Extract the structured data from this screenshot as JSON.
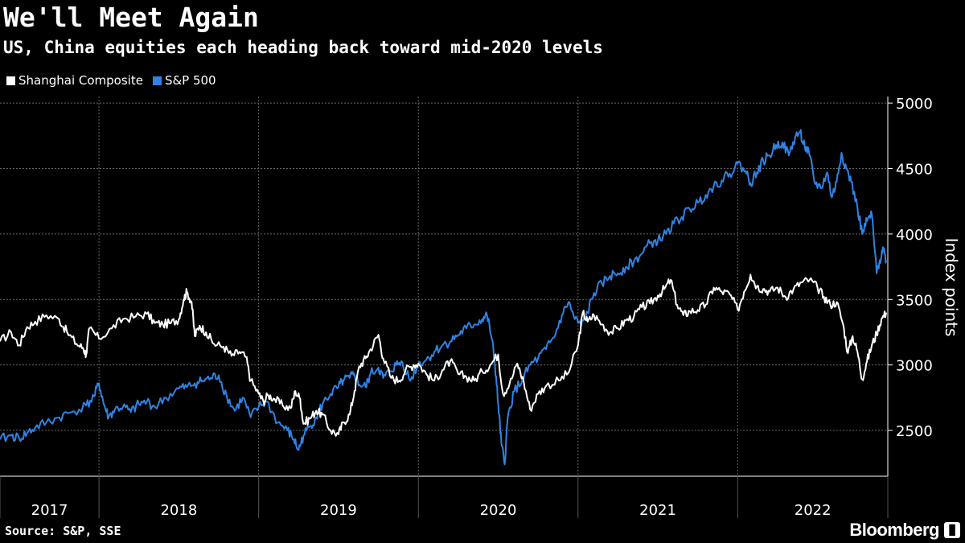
{
  "title": "We'll Meet Again",
  "subtitle": "US, China equities each heading back toward mid-2020 levels",
  "source": "Source: S&P, SSE",
  "brand": "Bloomberg",
  "brand_icon": "bloomberg-terminal-icon",
  "colors": {
    "background": "#000000",
    "shanghai": "#ffffff",
    "sp500": "#2f83e4",
    "grid": "#666666"
  },
  "chart_data": {
    "type": "line",
    "title": "We'll Meet Again",
    "subtitle": "US, China equities each heading back toward mid-2020 levels",
    "xlabel": "",
    "ylabel": "Index points",
    "x_range": [
      2016.88,
      2022.44
    ],
    "ylim": [
      2150,
      5050
    ],
    "y_ticks": [
      2500,
      3000,
      3500,
      4000,
      4500,
      5000
    ],
    "x_ticks": [
      {
        "label": "2017",
        "year": 2017
      },
      {
        "label": "2018",
        "year": 2018
      },
      {
        "label": "2019",
        "year": 2019
      },
      {
        "label": "2020",
        "year": 2020
      },
      {
        "label": "2021",
        "year": 2021
      },
      {
        "label": "2022",
        "year": 2022
      }
    ],
    "x_boundaries": [
      2016.88,
      2017.5,
      2018.5,
      2019.5,
      2020.5,
      2021.5,
      2022.44
    ],
    "grid": true,
    "legend_position": "top-left",
    "series": [
      {
        "name": "Shanghai Composite",
        "color": "#ffffff",
        "points": [
          [
            2016.88,
            3180
          ],
          [
            2016.95,
            3250
          ],
          [
            2017.0,
            3150
          ],
          [
            2017.05,
            3290
          ],
          [
            2017.1,
            3330
          ],
          [
            2017.17,
            3380
          ],
          [
            2017.25,
            3350
          ],
          [
            2017.3,
            3250
          ],
          [
            2017.36,
            3160
          ],
          [
            2017.4,
            3130
          ],
          [
            2017.42,
            3080
          ],
          [
            2017.44,
            3280
          ],
          [
            2017.5,
            3200
          ],
          [
            2017.58,
            3280
          ],
          [
            2017.65,
            3350
          ],
          [
            2017.73,
            3370
          ],
          [
            2017.8,
            3390
          ],
          [
            2017.85,
            3320
          ],
          [
            2017.9,
            3310
          ],
          [
            2017.95,
            3320
          ],
          [
            2018.0,
            3350
          ],
          [
            2018.03,
            3500
          ],
          [
            2018.05,
            3560
          ],
          [
            2018.08,
            3480
          ],
          [
            2018.1,
            3220
          ],
          [
            2018.13,
            3300
          ],
          [
            2018.17,
            3250
          ],
          [
            2018.22,
            3160
          ],
          [
            2018.28,
            3140
          ],
          [
            2018.33,
            3070
          ],
          [
            2018.38,
            3100
          ],
          [
            2018.42,
            3060
          ],
          [
            2018.45,
            2880
          ],
          [
            2018.5,
            2780
          ],
          [
            2018.53,
            2720
          ],
          [
            2018.56,
            2770
          ],
          [
            2018.6,
            2740
          ],
          [
            2018.65,
            2690
          ],
          [
            2018.7,
            2670
          ],
          [
            2018.73,
            2800
          ],
          [
            2018.76,
            2740
          ],
          [
            2018.78,
            2550
          ],
          [
            2018.82,
            2590
          ],
          [
            2018.86,
            2650
          ],
          [
            2018.9,
            2620
          ],
          [
            2018.95,
            2500
          ],
          [
            2019.0,
            2470
          ],
          [
            2019.03,
            2560
          ],
          [
            2019.07,
            2620
          ],
          [
            2019.1,
            2800
          ],
          [
            2019.13,
            2990
          ],
          [
            2019.17,
            3050
          ],
          [
            2019.2,
            3120
          ],
          [
            2019.25,
            3230
          ],
          [
            2019.28,
            3050
          ],
          [
            2019.33,
            2900
          ],
          [
            2019.38,
            2880
          ],
          [
            2019.42,
            2960
          ],
          [
            2019.47,
            3000
          ],
          [
            2019.5,
            3010
          ],
          [
            2019.55,
            2930
          ],
          [
            2019.6,
            2880
          ],
          [
            2019.65,
            2960
          ],
          [
            2019.7,
            3030
          ],
          [
            2019.75,
            2930
          ],
          [
            2019.8,
            2910
          ],
          [
            2019.85,
            2880
          ],
          [
            2019.9,
            2950
          ],
          [
            2019.95,
            3000
          ],
          [
            2020.0,
            3080
          ],
          [
            2020.03,
            2780
          ],
          [
            2020.07,
            2850
          ],
          [
            2020.12,
            3010
          ],
          [
            2020.16,
            2870
          ],
          [
            2020.2,
            2660
          ],
          [
            2020.25,
            2780
          ],
          [
            2020.3,
            2840
          ],
          [
            2020.38,
            2880
          ],
          [
            2020.44,
            2940
          ],
          [
            2020.5,
            3150
          ],
          [
            2020.53,
            3400
          ],
          [
            2020.56,
            3330
          ],
          [
            2020.6,
            3380
          ],
          [
            2020.65,
            3310
          ],
          [
            2020.7,
            3250
          ],
          [
            2020.75,
            3280
          ],
          [
            2020.8,
            3340
          ],
          [
            2020.85,
            3370
          ],
          [
            2020.9,
            3440
          ],
          [
            2020.95,
            3470
          ],
          [
            2021.0,
            3530
          ],
          [
            2021.04,
            3580
          ],
          [
            2021.08,
            3650
          ],
          [
            2021.12,
            3460
          ],
          [
            2021.16,
            3380
          ],
          [
            2021.2,
            3410
          ],
          [
            2021.25,
            3420
          ],
          [
            2021.3,
            3460
          ],
          [
            2021.35,
            3590
          ],
          [
            2021.4,
            3560
          ],
          [
            2021.45,
            3540
          ],
          [
            2021.5,
            3420
          ],
          [
            2021.54,
            3560
          ],
          [
            2021.58,
            3690
          ],
          [
            2021.62,
            3600
          ],
          [
            2021.66,
            3580
          ],
          [
            2021.7,
            3560
          ],
          [
            2021.75,
            3590
          ],
          [
            2021.8,
            3520
          ],
          [
            2021.85,
            3580
          ],
          [
            2021.9,
            3630
          ],
          [
            2021.95,
            3650
          ],
          [
            2022.0,
            3590
          ],
          [
            2022.04,
            3520
          ],
          [
            2022.08,
            3460
          ],
          [
            2022.12,
            3480
          ],
          [
            2022.16,
            3310
          ],
          [
            2022.19,
            3090
          ],
          [
            2022.22,
            3220
          ],
          [
            2022.25,
            3100
          ],
          [
            2022.28,
            2890
          ],
          [
            2022.31,
            3030
          ],
          [
            2022.34,
            3150
          ],
          [
            2022.37,
            3240
          ],
          [
            2022.4,
            3350
          ],
          [
            2022.43,
            3400
          ]
        ]
      },
      {
        "name": "S&P 500",
        "color": "#2f83e4",
        "points": [
          [
            2016.88,
            2430
          ],
          [
            2016.95,
            2460
          ],
          [
            2017.0,
            2440
          ],
          [
            2017.05,
            2480
          ],
          [
            2017.1,
            2520
          ],
          [
            2017.17,
            2560
          ],
          [
            2017.25,
            2600
          ],
          [
            2017.33,
            2640
          ],
          [
            2017.42,
            2690
          ],
          [
            2017.47,
            2760
          ],
          [
            2017.5,
            2860
          ],
          [
            2017.53,
            2700
          ],
          [
            2017.56,
            2600
          ],
          [
            2017.6,
            2660
          ],
          [
            2017.65,
            2680
          ],
          [
            2017.7,
            2640
          ],
          [
            2017.75,
            2700
          ],
          [
            2017.8,
            2720
          ],
          [
            2017.85,
            2680
          ],
          [
            2017.92,
            2750
          ],
          [
            2018.0,
            2820
          ],
          [
            2018.05,
            2830
          ],
          [
            2018.1,
            2860
          ],
          [
            2018.15,
            2880
          ],
          [
            2018.2,
            2900
          ],
          [
            2018.25,
            2920
          ],
          [
            2018.3,
            2760
          ],
          [
            2018.35,
            2650
          ],
          [
            2018.4,
            2750
          ],
          [
            2018.45,
            2600
          ],
          [
            2018.5,
            2680
          ],
          [
            2018.55,
            2720
          ],
          [
            2018.62,
            2560
          ],
          [
            2018.68,
            2500
          ],
          [
            2018.72,
            2430
          ],
          [
            2018.75,
            2350
          ],
          [
            2018.78,
            2460
          ],
          [
            2018.82,
            2530
          ],
          [
            2018.86,
            2600
          ],
          [
            2018.9,
            2700
          ],
          [
            2018.95,
            2780
          ],
          [
            2019.0,
            2830
          ],
          [
            2019.03,
            2880
          ],
          [
            2019.07,
            2900
          ],
          [
            2019.1,
            2930
          ],
          [
            2019.13,
            2850
          ],
          [
            2019.17,
            2830
          ],
          [
            2019.2,
            2930
          ],
          [
            2019.25,
            2980
          ],
          [
            2019.28,
            2900
          ],
          [
            2019.32,
            2950
          ],
          [
            2019.36,
            3000
          ],
          [
            2019.4,
            3020
          ],
          [
            2019.45,
            2880
          ],
          [
            2019.5,
            3010
          ],
          [
            2019.55,
            3040
          ],
          [
            2019.6,
            3100
          ],
          [
            2019.65,
            3150
          ],
          [
            2019.7,
            3180
          ],
          [
            2019.75,
            3230
          ],
          [
            2019.8,
            3280
          ],
          [
            2019.85,
            3310
          ],
          [
            2019.9,
            3350
          ],
          [
            2019.93,
            3380
          ],
          [
            2019.96,
            3200
          ],
          [
            2019.98,
            3000
          ],
          [
            2020.0,
            2700
          ],
          [
            2020.02,
            2400
          ],
          [
            2020.04,
            2240
          ],
          [
            2020.06,
            2600
          ],
          [
            2020.1,
            2800
          ],
          [
            2020.15,
            2880
          ],
          [
            2020.2,
            3000
          ],
          [
            2020.25,
            3050
          ],
          [
            2020.3,
            3120
          ],
          [
            2020.35,
            3210
          ],
          [
            2020.4,
            3380
          ],
          [
            2020.44,
            3480
          ],
          [
            2020.48,
            3350
          ],
          [
            2020.52,
            3300
          ],
          [
            2020.56,
            3400
          ],
          [
            2020.6,
            3550
          ],
          [
            2020.65,
            3620
          ],
          [
            2020.7,
            3680
          ],
          [
            2020.75,
            3700
          ],
          [
            2020.8,
            3750
          ],
          [
            2020.85,
            3790
          ],
          [
            2020.9,
            3850
          ],
          [
            2020.95,
            3930
          ],
          [
            2021.0,
            3950
          ],
          [
            2021.05,
            4000
          ],
          [
            2021.1,
            4080
          ],
          [
            2021.15,
            4130
          ],
          [
            2021.2,
            4190
          ],
          [
            2021.25,
            4240
          ],
          [
            2021.3,
            4300
          ],
          [
            2021.35,
            4370
          ],
          [
            2021.4,
            4410
          ],
          [
            2021.45,
            4460
          ],
          [
            2021.5,
            4540
          ],
          [
            2021.55,
            4480
          ],
          [
            2021.58,
            4390
          ],
          [
            2021.62,
            4470
          ],
          [
            2021.66,
            4560
          ],
          [
            2021.7,
            4600
          ],
          [
            2021.74,
            4680
          ],
          [
            2021.78,
            4700
          ],
          [
            2021.82,
            4600
          ],
          [
            2021.86,
            4740
          ],
          [
            2021.89,
            4780
          ],
          [
            2021.92,
            4670
          ],
          [
            2021.95,
            4600
          ],
          [
            2021.98,
            4400
          ],
          [
            2022.02,
            4350
          ],
          [
            2022.06,
            4470
          ],
          [
            2022.09,
            4280
          ],
          [
            2022.12,
            4400
          ],
          [
            2022.15,
            4620
          ],
          [
            2022.18,
            4500
          ],
          [
            2022.21,
            4400
          ],
          [
            2022.25,
            4200
          ],
          [
            2022.28,
            4000
          ],
          [
            2022.31,
            4100
          ],
          [
            2022.34,
            4150
          ],
          [
            2022.37,
            3700
          ],
          [
            2022.39,
            3800
          ],
          [
            2022.41,
            3900
          ],
          [
            2022.43,
            3800
          ]
        ]
      }
    ]
  }
}
